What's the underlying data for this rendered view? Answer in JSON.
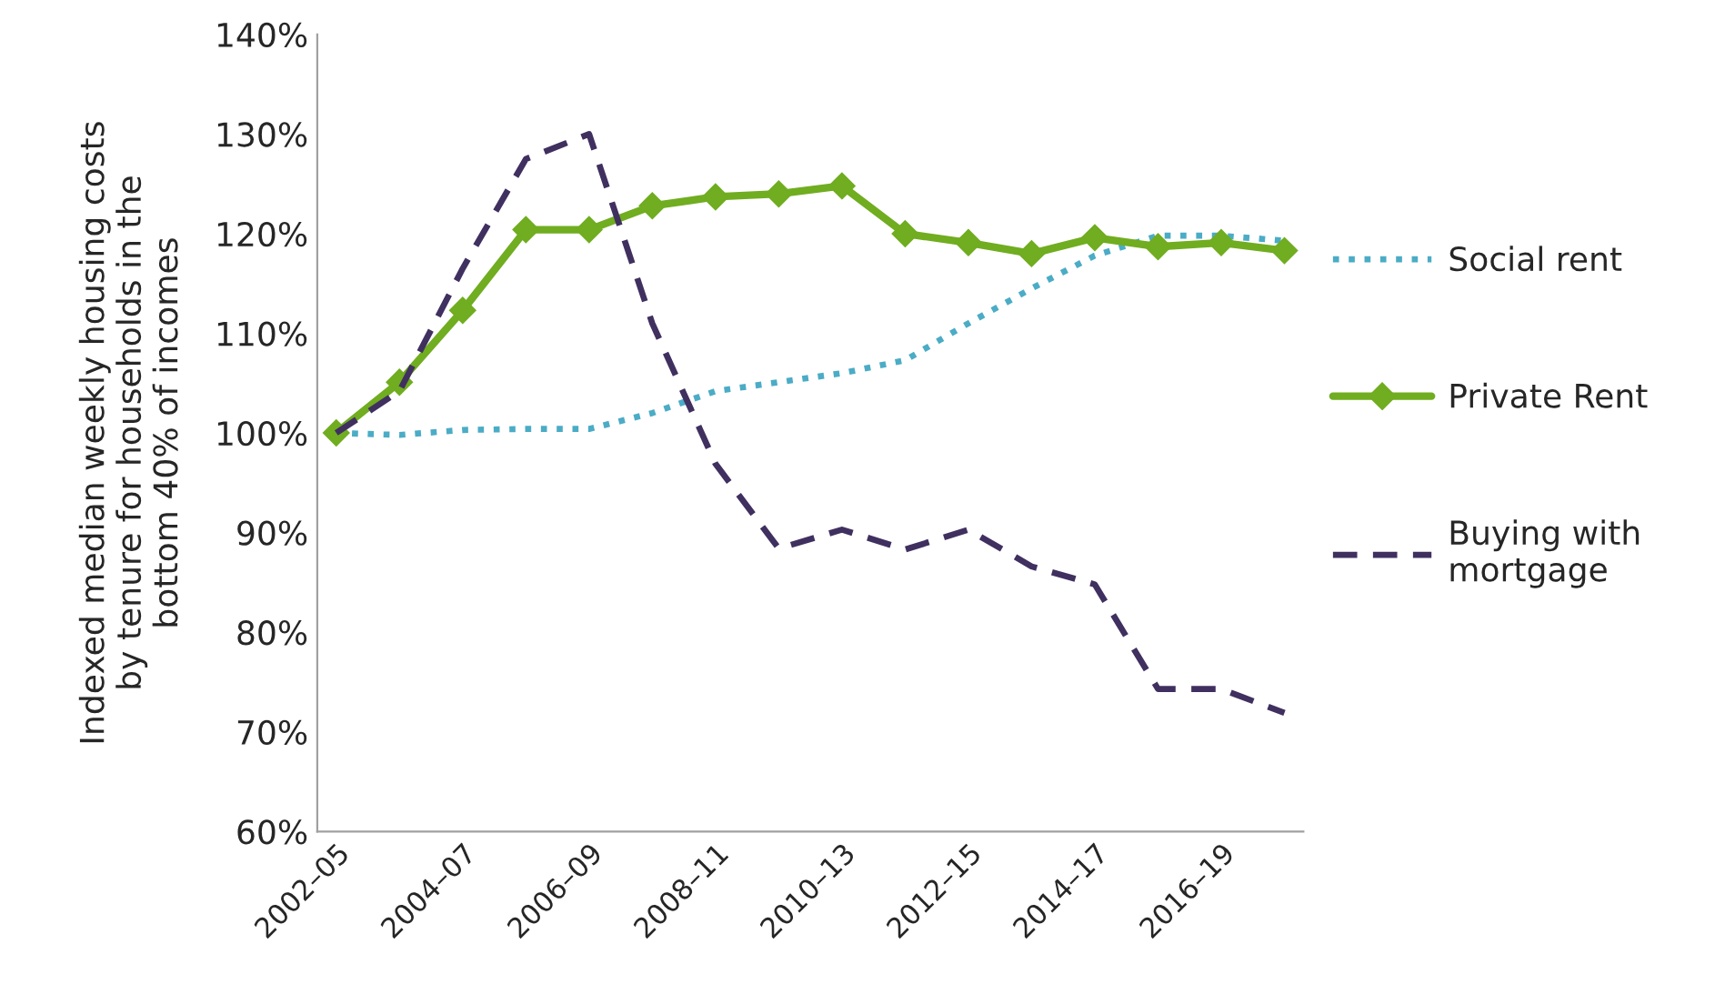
{
  "chart_data": {
    "type": "line",
    "ylabel": "Indexed median weekly housing costs\nby tenure for households in the\nbottom 40% of incomes",
    "categories": [
      "2002–05",
      null,
      "2004–07",
      null,
      "2006–09",
      null,
      "2008–11",
      null,
      "2010–13",
      null,
      "2012–15",
      null,
      "2014–17",
      null,
      "2016–19",
      null
    ],
    "series": [
      {
        "name": "Social rent",
        "color": "#4bacc6",
        "line_style": "dotted",
        "marker": "none",
        "values": [
          100,
          99.8,
          100.3,
          100.4,
          100.4,
          102,
          104.2,
          105.1,
          106,
          107.3,
          111,
          114.5,
          117.8,
          119.8,
          119.8,
          119.3
        ]
      },
      {
        "name": "Private Rent",
        "color": "#70ad20",
        "line_style": "solid",
        "marker": "diamond",
        "values": [
          100,
          105.1,
          112.3,
          120.4,
          120.4,
          122.8,
          123.7,
          124,
          124.8,
          120,
          119.1,
          118,
          119.6,
          118.7,
          119.1,
          118.3
        ]
      },
      {
        "name": "Buying with\nmortgage",
        "color": "#403060",
        "line_style": "dashed",
        "marker": "none",
        "values": [
          100,
          104.2,
          116.5,
          127.5,
          130,
          111,
          96.9,
          88.4,
          90.3,
          88.3,
          90.3,
          86.6,
          84.8,
          74.3,
          74.3,
          71.9
        ]
      }
    ],
    "ylim": [
      60,
      140
    ],
    "yticks": [
      {
        "value": 60,
        "label": "60%"
      },
      {
        "value": 70,
        "label": "70%"
      },
      {
        "value": 80,
        "label": "80%"
      },
      {
        "value": 90,
        "label": "90%"
      },
      {
        "value": 100,
        "label": "100%"
      },
      {
        "value": 110,
        "label": "110%"
      },
      {
        "value": 120,
        "label": "120%"
      },
      {
        "value": 130,
        "label": "130%"
      },
      {
        "value": 140,
        "label": "140%"
      }
    ],
    "grid": false,
    "legend": "right"
  }
}
